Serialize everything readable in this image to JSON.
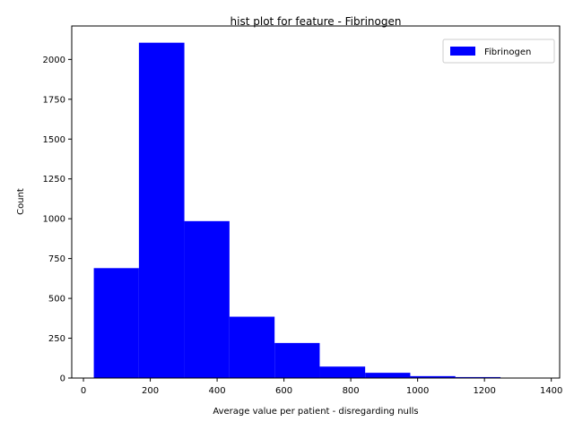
{
  "chart_data": {
    "type": "bar",
    "title": "hist plot for feature -  Fibrinogen",
    "xlabel": "Average value per patient - disregarding nulls",
    "ylabel": "Count",
    "xlim": [
      -35,
      1425
    ],
    "ylim": [
      0,
      2210
    ],
    "xticks": [
      0,
      200,
      400,
      600,
      800,
      1000,
      1200,
      1400
    ],
    "yticks": [
      0,
      250,
      500,
      750,
      1000,
      1250,
      1500,
      1750,
      2000
    ],
    "bin_edges": [
      31,
      166,
      302,
      437,
      572,
      707,
      843,
      978,
      1113,
      1248,
      1384
    ],
    "series": [
      {
        "name": "Fibrinogen",
        "color": "#0000ff",
        "values": [
          690,
          2105,
          985,
          385,
          220,
          72,
          33,
          12,
          6,
          0
        ]
      }
    ],
    "legend": {
      "position": "top-right"
    },
    "grid": false
  }
}
